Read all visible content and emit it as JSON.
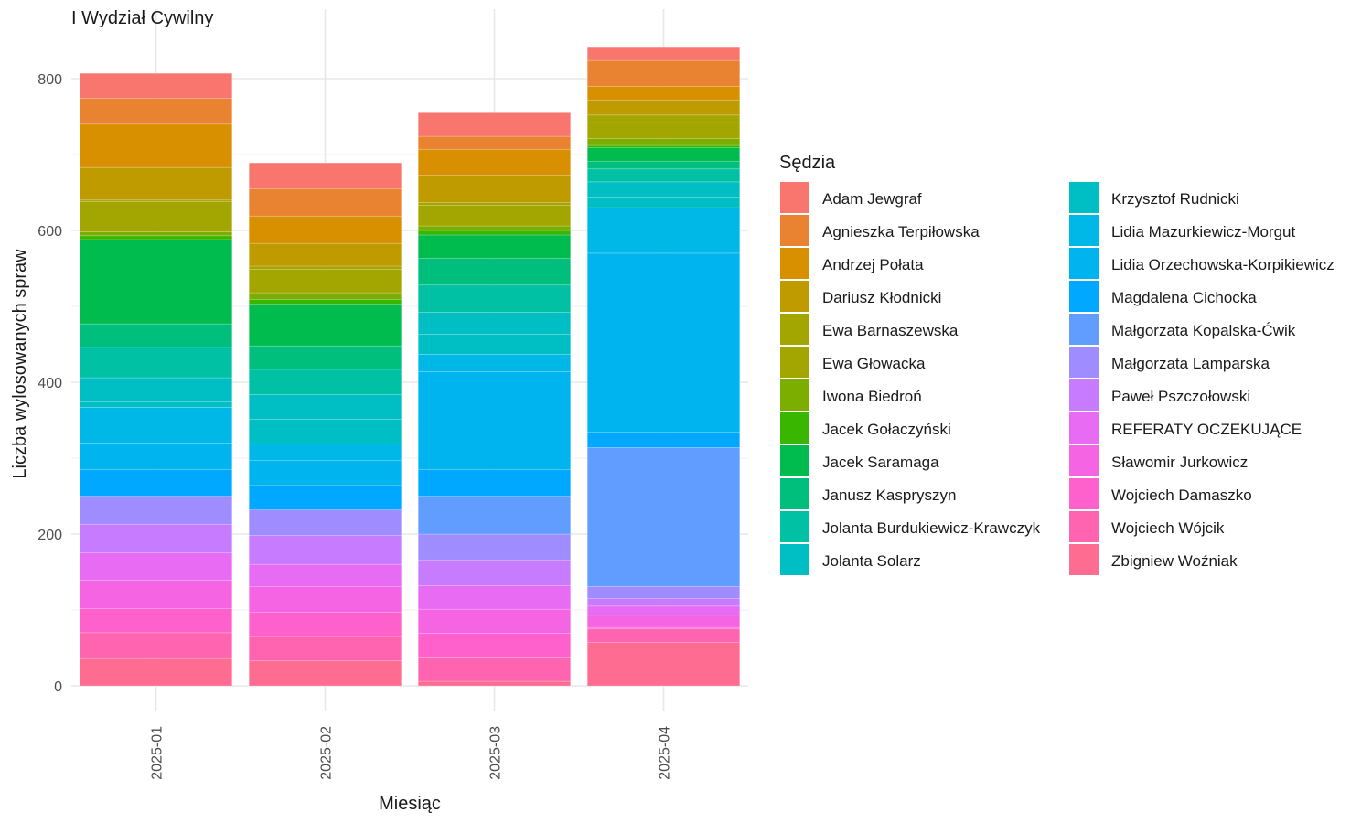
{
  "chart_data": {
    "type": "bar",
    "stacked": true,
    "title": "I Wydział Cywilny",
    "xlabel": "Miesiąc",
    "ylabel": "Liczba wylosowanych spraw",
    "legend_title": "Sędzia",
    "legend_position": "right",
    "grid": true,
    "ylim": [
      -30,
      890
    ],
    "yticks": [
      0,
      200,
      400,
      600,
      800
    ],
    "categories": [
      "2025-01",
      "2025-02",
      "2025-03",
      "2025-04"
    ],
    "series": [
      {
        "name": "Adam Jewgraf",
        "color": "#F8766D",
        "values": [
          33,
          34,
          31,
          18
        ]
      },
      {
        "name": "Agnieszka Terpiłowska",
        "color": "#EA8331",
        "values": [
          34,
          36,
          17,
          34
        ]
      },
      {
        "name": "Andrzej Połata",
        "color": "#D89000",
        "values": [
          57,
          36,
          34,
          18
        ]
      },
      {
        "name": "Dariusz Kłodnicki",
        "color": "#C09B00",
        "values": [
          43,
          30,
          36,
          20
        ]
      },
      {
        "name": "Ewa Barnaszewska",
        "color": "#A3A500",
        "values": [
          2,
          4,
          4,
          10
        ]
      },
      {
        "name": "Ewa Głowacka",
        "color": "#A3A500",
        "values": [
          40,
          31,
          27,
          21
        ]
      },
      {
        "name": "Iwona Biedroń",
        "color": "#7CAE00",
        "values": [
          5,
          9,
          6,
          9
        ]
      },
      {
        "name": "Jacek Gołaczyński",
        "color": "#39B600",
        "values": [
          5,
          6,
          6,
          3
        ]
      },
      {
        "name": "Jacek Saramaga",
        "color": "#00BB4E",
        "values": [
          111,
          55,
          31,
          18
        ]
      },
      {
        "name": "Janusz Kaspryszyn",
        "color": "#00BF7D",
        "values": [
          31,
          31,
          35,
          10
        ]
      },
      {
        "name": "Jolanta Burdukiewicz-Krawczyk",
        "color": "#00C1A3",
        "values": [
          40,
          33,
          36,
          17
        ]
      },
      {
        "name": "Jolanta Solarz",
        "color": "#00BFC4",
        "values": [
          32,
          33,
          29,
          20
        ]
      },
      {
        "name": "Krzysztof Rudnicki",
        "color": "#00BFC4",
        "values": [
          7,
          32,
          26,
          14
        ]
      },
      {
        "name": "Lidia Mazurkiewicz-Morgut",
        "color": "#00B8E7",
        "values": [
          47,
          22,
          23,
          60
        ]
      },
      {
        "name": "Lidia Orzechowska-Korpikiewicz",
        "color": "#00B4EF",
        "values": [
          35,
          33,
          129,
          236
        ]
      },
      {
        "name": "Magdalena Cichocka",
        "color": "#00A9FF",
        "values": [
          35,
          32,
          35,
          20
        ]
      },
      {
        "name": "Małgorzata Kopalska-Ćwik",
        "color": "#619CFF",
        "values": [
          0,
          0,
          50,
          183
        ]
      },
      {
        "name": "Małgorzata Lamparska",
        "color": "#9F8CFF",
        "values": [
          37,
          34,
          34,
          16
        ]
      },
      {
        "name": "Paweł Pszczołowski",
        "color": "#C77CFF",
        "values": [
          38,
          38,
          34,
          10
        ]
      },
      {
        "name": "REFERATY OCZEKUJĄCE",
        "color": "#E76BF3",
        "values": [
          36,
          29,
          31,
          12
        ]
      },
      {
        "name": "Sławomir Jurkowicz",
        "color": "#F564E3",
        "values": [
          37,
          34,
          32,
          16
        ]
      },
      {
        "name": "Wojciech Damaszko",
        "color": "#FF61CC",
        "values": [
          32,
          32,
          32,
          2
        ]
      },
      {
        "name": "Wojciech Wójcik",
        "color": "#FF64B0",
        "values": [
          34,
          32,
          31,
          18
        ]
      },
      {
        "name": "Zbigniew Woźniak",
        "color": "#FF6C91",
        "values": [
          36,
          33,
          6,
          57
        ]
      }
    ]
  }
}
